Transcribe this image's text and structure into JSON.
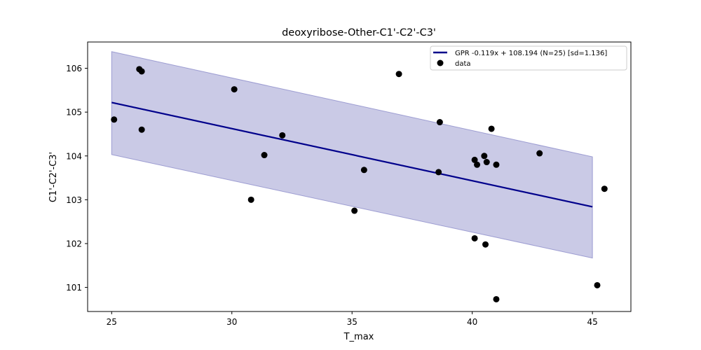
{
  "chart_data": {
    "type": "scatter",
    "title": "deoxyribose-Other-C1'-C2'-C3'",
    "xlabel": "T_max",
    "ylabel": "C1'-C2'-C3'",
    "xlim": [
      24.0,
      46.6
    ],
    "ylim": [
      100.45,
      106.6
    ],
    "xticks": [
      25,
      30,
      35,
      40,
      45
    ],
    "yticks": [
      101,
      102,
      103,
      104,
      105,
      106
    ],
    "grid": false,
    "legend_position": "top-right",
    "series": [
      {
        "name": "GPR -0.119x + 108.194 (N=25) [sd=1.136]",
        "kind": "line",
        "color": "#00008b",
        "x": [
          25.0,
          45.0
        ],
        "y": [
          105.219,
          102.839
        ],
        "band": {
          "color": "#8080c4",
          "upper": [
            106.38,
            103.98
          ],
          "lower": [
            104.03,
            101.67
          ]
        }
      },
      {
        "name": "data",
        "kind": "scatter",
        "color": "#000000",
        "x": [
          25.1,
          26.15,
          26.25,
          26.25,
          30.1,
          30.8,
          31.35,
          32.1,
          35.1,
          35.5,
          36.95,
          38.6,
          38.65,
          40.1,
          40.1,
          40.2,
          40.5,
          40.55,
          40.6,
          40.8,
          41.0,
          41.0,
          42.8,
          45.2,
          45.5
        ],
        "y": [
          104.83,
          105.98,
          105.93,
          104.6,
          105.52,
          103.0,
          104.02,
          104.47,
          102.75,
          103.68,
          105.87,
          103.63,
          104.77,
          103.91,
          102.12,
          103.8,
          104.0,
          101.98,
          103.86,
          104.62,
          103.8,
          100.73,
          104.06,
          101.05,
          103.25
        ]
      }
    ]
  }
}
